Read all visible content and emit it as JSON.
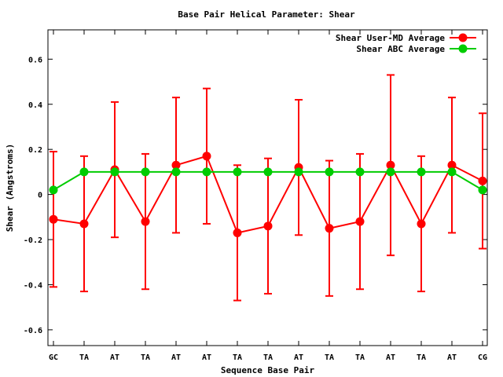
{
  "chart_data": {
    "type": "line",
    "title": "Base Pair Helical Parameter: Shear",
    "xlabel": "Sequence Base Pair",
    "ylabel": "Shear (Angstroms)",
    "categories": [
      "GC",
      "TA",
      "AT",
      "TA",
      "AT",
      "AT",
      "TA",
      "TA",
      "AT",
      "TA",
      "TA",
      "AT",
      "TA",
      "AT",
      "CG"
    ],
    "ylim": [
      -0.67,
      0.73
    ],
    "yticks": [
      -0.6,
      -0.4,
      -0.2,
      0,
      0.2,
      0.4,
      0.6
    ],
    "ytick_labels": [
      "-0.6",
      "-0.4",
      "-0.2",
      "0",
      "0.2",
      "0.4",
      "0.6"
    ],
    "grid": false,
    "legend_position": "top-right",
    "series": [
      {
        "name": "Shear User-MD Average",
        "color": "#ff0000",
        "marker": "circle",
        "values": [
          -0.11,
          -0.13,
          0.11,
          -0.12,
          0.13,
          0.17,
          -0.17,
          -0.14,
          0.12,
          -0.15,
          -0.12,
          0.13,
          -0.13,
          0.13,
          0.06
        ],
        "error_low": [
          -0.41,
          -0.43,
          -0.19,
          -0.42,
          -0.17,
          -0.13,
          -0.47,
          -0.44,
          -0.18,
          -0.45,
          -0.42,
          -0.27,
          -0.43,
          -0.17,
          -0.24
        ],
        "error_high": [
          0.19,
          0.17,
          0.41,
          0.18,
          0.43,
          0.47,
          0.13,
          0.16,
          0.42,
          0.15,
          0.18,
          0.53,
          0.17,
          0.43,
          0.36
        ]
      },
      {
        "name": "Shear ABC Average",
        "color": "#00cc00",
        "marker": "circle",
        "values": [
          0.02,
          0.1,
          0.1,
          0.1,
          0.1,
          0.1,
          0.1,
          0.1,
          0.1,
          0.1,
          0.1,
          0.1,
          0.1,
          0.1,
          0.02
        ]
      }
    ]
  }
}
